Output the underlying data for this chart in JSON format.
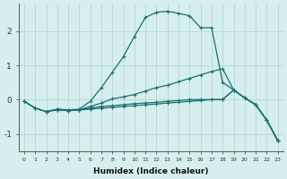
{
  "xlabel": "Humidex (Indice chaleur)",
  "background_color": "#d6eeee",
  "grid_color": "#b0d8d8",
  "line_color": "#1a7070",
  "xlim": [
    -0.5,
    23.5
  ],
  "ylim": [
    -1.5,
    2.8
  ],
  "xticks": [
    0,
    1,
    2,
    3,
    4,
    5,
    6,
    7,
    8,
    9,
    10,
    11,
    12,
    13,
    14,
    15,
    16,
    17,
    18,
    19,
    20,
    21,
    22,
    23
  ],
  "yticks": [
    -1,
    0,
    1,
    2
  ],
  "line1_x": [
    0,
    1,
    2,
    3,
    4,
    5,
    6,
    7,
    8,
    9,
    10,
    11,
    12,
    13,
    14,
    15,
    16,
    17,
    18,
    19,
    20,
    21,
    22,
    23
  ],
  "line1_y": [
    -0.05,
    -0.25,
    -0.35,
    -0.28,
    -0.3,
    -0.28,
    -0.05,
    0.35,
    0.8,
    1.25,
    1.85,
    2.4,
    2.55,
    2.58,
    2.52,
    2.45,
    2.1,
    2.1,
    0.5,
    0.28,
    0.05,
    -0.15,
    -0.6,
    -1.2
  ],
  "line2_x": [
    0,
    1,
    2,
    3,
    4,
    5,
    6,
    7,
    8,
    9,
    10,
    11,
    12,
    13,
    14,
    15,
    16,
    17,
    18,
    19,
    20,
    21,
    22,
    23
  ],
  "line2_y": [
    -0.05,
    -0.25,
    -0.35,
    -0.3,
    -0.32,
    -0.3,
    -0.2,
    -0.1,
    0.02,
    0.08,
    0.15,
    0.25,
    0.35,
    0.42,
    0.52,
    0.62,
    0.72,
    0.82,
    0.9,
    0.28,
    0.05,
    -0.15,
    -0.6,
    -1.2
  ],
  "line3_x": [
    2,
    3,
    4,
    5,
    6,
    7,
    8,
    9,
    10,
    11,
    12,
    13,
    14,
    15,
    16,
    17,
    18,
    19,
    20,
    21,
    22,
    23
  ],
  "line3_y": [
    -0.35,
    -0.28,
    -0.32,
    -0.3,
    -0.25,
    -0.2,
    -0.18,
    -0.15,
    -0.12,
    -0.1,
    -0.08,
    -0.05,
    -0.03,
    0.0,
    0.0,
    0.0,
    0.0,
    0.28,
    0.05,
    -0.15,
    -0.6,
    -1.2
  ],
  "line4_x": [
    0,
    1,
    2,
    3,
    4,
    5,
    6,
    7,
    8,
    9,
    10,
    11,
    12,
    13,
    14,
    15,
    16,
    17,
    18,
    19,
    20,
    21,
    22,
    23
  ],
  "line4_y": [
    -0.05,
    -0.25,
    -0.35,
    -0.3,
    -0.32,
    -0.3,
    -0.28,
    -0.25,
    -0.23,
    -0.2,
    -0.18,
    -0.15,
    -0.13,
    -0.1,
    -0.08,
    -0.05,
    -0.03,
    0.0,
    0.0,
    0.28,
    0.05,
    -0.15,
    -0.6,
    -1.2
  ]
}
